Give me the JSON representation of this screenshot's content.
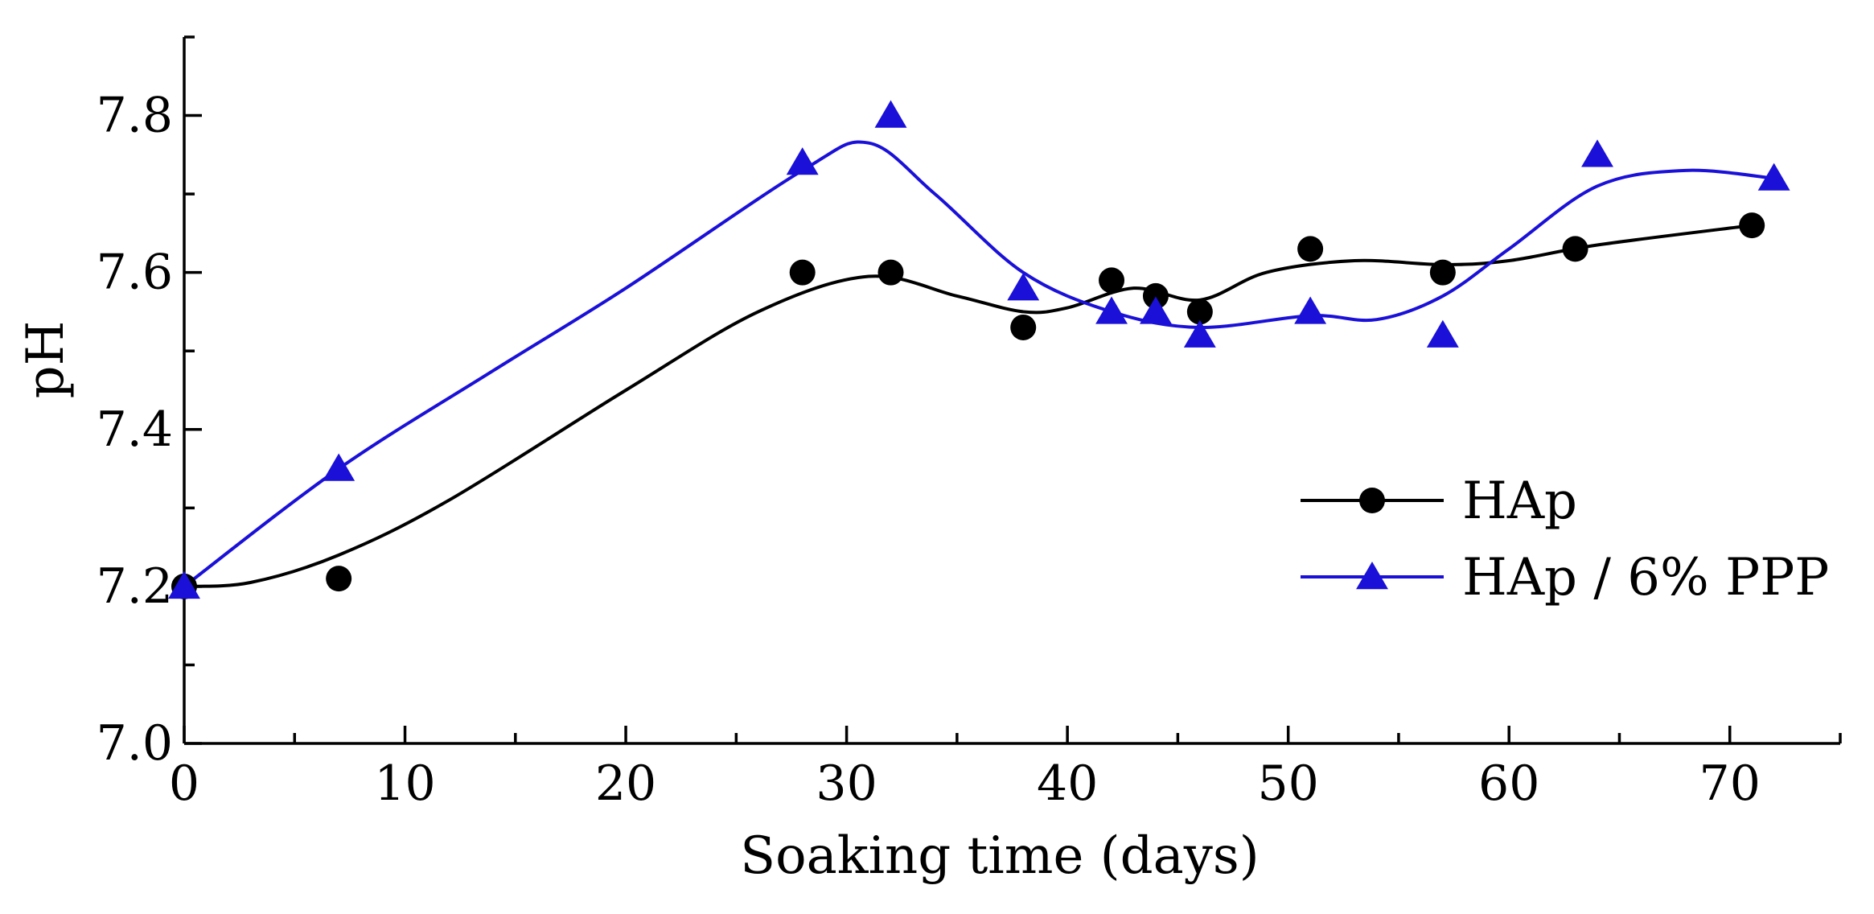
{
  "chart_data": {
    "type": "scatter",
    "title": "",
    "xlabel": "Soaking time (days)",
    "ylabel": "pH",
    "xlim": [
      0,
      75
    ],
    "ylim": [
      7.0,
      7.9
    ],
    "xticks": [
      0,
      10,
      20,
      30,
      40,
      50,
      60,
      70
    ],
    "xtick_labels": [
      "0",
      "10",
      "20",
      "30",
      "40",
      "50",
      "60",
      "70"
    ],
    "yticks": [
      7.0,
      7.2,
      7.4,
      7.6,
      7.8
    ],
    "ytick_labels": [
      "7.0",
      "7.2",
      "7.4",
      "7.6",
      "7.8"
    ],
    "x_minor_step": 5,
    "y_minor_step": 0.1,
    "grid": false,
    "legend_position": "right",
    "series": [
      {
        "name": "HAp",
        "color": "#000000",
        "marker": "circle",
        "x": [
          0,
          7,
          28,
          32,
          38,
          42,
          44,
          46,
          51,
          57,
          63,
          71
        ],
        "y": [
          7.2,
          7.21,
          7.6,
          7.6,
          7.53,
          7.59,
          7.57,
          7.55,
          7.63,
          7.6,
          7.63,
          7.66
        ],
        "curve_x": [
          0,
          3,
          7,
          12,
          20,
          26,
          31,
          35,
          38,
          40,
          43,
          46,
          49,
          53,
          57,
          60,
          64,
          71
        ],
        "curve_y": [
          7.2,
          7.205,
          7.24,
          7.31,
          7.45,
          7.55,
          7.595,
          7.57,
          7.55,
          7.555,
          7.58,
          7.565,
          7.6,
          7.615,
          7.61,
          7.615,
          7.635,
          7.66
        ]
      },
      {
        "name": "HAp / 6% PPP",
        "color": "#1a10d8",
        "marker": "triangle",
        "x": [
          0,
          7,
          28,
          32,
          38,
          42,
          44,
          46,
          51,
          57,
          64,
          72
        ],
        "y": [
          7.2,
          7.35,
          7.74,
          7.8,
          7.58,
          7.55,
          7.55,
          7.52,
          7.55,
          7.52,
          7.75,
          7.72
        ],
        "curve_x": [
          0,
          7,
          14,
          20,
          28,
          31,
          34,
          38,
          42,
          46,
          51,
          54,
          57,
          60,
          64,
          68,
          72
        ],
        "curve_y": [
          7.2,
          7.35,
          7.475,
          7.58,
          7.73,
          7.765,
          7.7,
          7.6,
          7.55,
          7.53,
          7.545,
          7.54,
          7.57,
          7.63,
          7.71,
          7.73,
          7.72
        ]
      }
    ]
  }
}
